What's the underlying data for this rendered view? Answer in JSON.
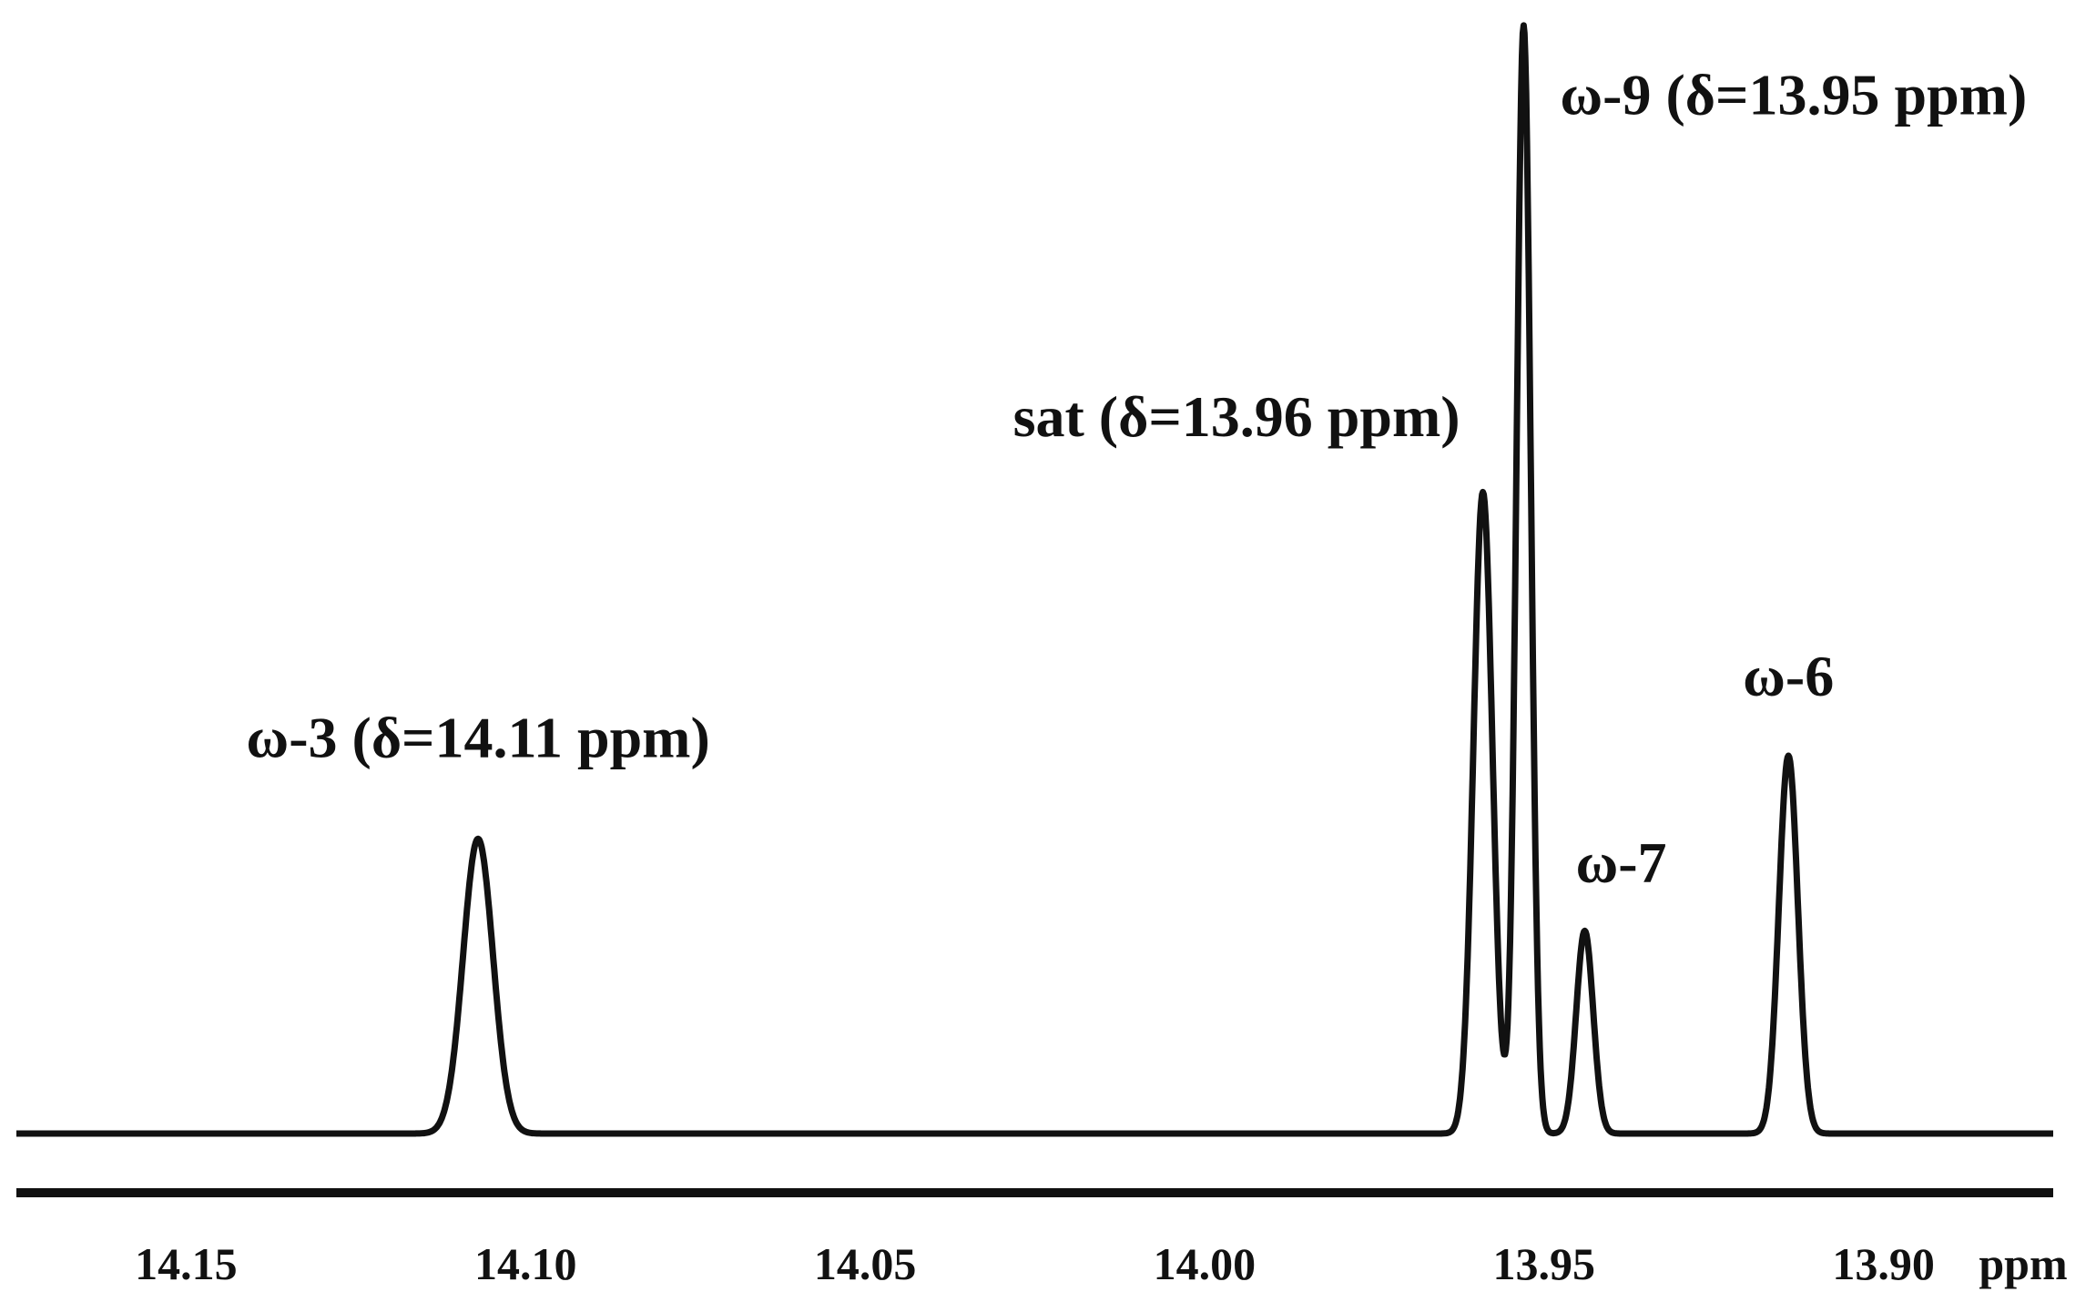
{
  "chart_data": {
    "type": "line",
    "title": "",
    "xlabel": "ppm",
    "ylabel": "",
    "x_reversed": true,
    "xlim": [
      14.175,
      13.875
    ],
    "ylim": [
      0,
      1
    ],
    "grid": false,
    "x_ticks": [
      "14.15",
      "14.10",
      "14.05",
      "14.00",
      "13.95",
      "13.90"
    ],
    "series": [
      {
        "name": "",
        "peaks": [
          {
            "center": 14.107,
            "height": 0.266,
            "width": 0.0022
          },
          {
            "center": 13.959,
            "height": 0.579,
            "width": 0.0014
          },
          {
            "center": 13.953,
            "height": 1.0,
            "width": 0.00105
          },
          {
            "center": 13.944,
            "height": 0.183,
            "width": 0.00125
          },
          {
            "center": 13.914,
            "height": 0.341,
            "width": 0.0014
          }
        ]
      }
    ],
    "annotations": [
      {
        "text": "ω-3 (δ=14.11 ppm)",
        "x": 14.107,
        "y": 0.27
      },
      {
        "text": "sat (δ=13.96 ppm)",
        "x": 13.959,
        "y": 0.58
      },
      {
        "text": "ω-9 (δ=13.95 ppm)",
        "x": 13.953,
        "y": 0.92
      },
      {
        "text": "ω-7",
        "x": 13.944,
        "y": 0.19
      },
      {
        "text": "ω-6",
        "x": 13.914,
        "y": 0.35
      }
    ]
  }
}
